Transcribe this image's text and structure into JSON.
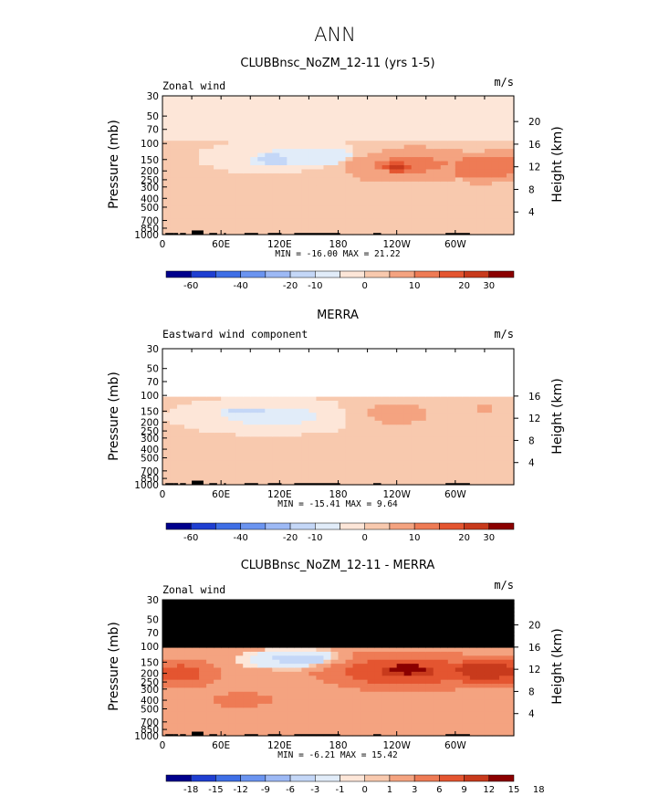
{
  "title": "ANN",
  "colors": {
    "cbar1": [
      "#00008c",
      "#1f3fd1",
      "#3f6fe6",
      "#6b94f0",
      "#9db9f5",
      "#c4d7f7",
      "#e1ecf9",
      "#fde6d8",
      "#f8c9ae",
      "#f4a380",
      "#ee7b55",
      "#e45530",
      "#c83a1c",
      "#8b0000"
    ],
    "cbar2": [
      "#00008c",
      "#1f3fd1",
      "#3f6fe6",
      "#6b94f0",
      "#9db9f5",
      "#c4d7f7",
      "#e1ecf9",
      "#fde6d8",
      "#f8c9ae",
      "#f4a380",
      "#ee7b55",
      "#e45530",
      "#c83a1c",
      "#8b0000"
    ]
  },
  "chart_data": [
    {
      "type": "heatmap",
      "title": "CLUBBnsc_NoZM_12-11 (yrs 1-5)",
      "left_label": "Zonal wind",
      "units": "m/s",
      "ylabel": "Pressure (mb)",
      "y2label": "Height (km)",
      "xticks": [
        "0",
        "60E",
        "120E",
        "180",
        "120W",
        "60W"
      ],
      "xtick_lon": [
        0,
        60,
        120,
        180,
        240,
        300
      ],
      "xlim": [
        0,
        360
      ],
      "yticks": [
        "30",
        "50",
        "70",
        "100",
        "150",
        "200",
        "250",
        "300",
        "400",
        "500",
        "700",
        "850",
        "1000"
      ],
      "ytick_p": [
        30,
        50,
        70,
        100,
        150,
        200,
        250,
        300,
        400,
        500,
        700,
        850,
        1000
      ],
      "ylim": [
        1000,
        30
      ],
      "y2ticks": [
        "20",
        "16",
        "12",
        "8",
        "4"
      ],
      "y2tick_km": [
        20,
        16,
        12,
        8,
        4
      ],
      "stats": "MIN = -16.00   MAX =  21.22",
      "colorbar_labels": [
        "-60",
        "-40",
        "-20",
        "-10",
        "0",
        "10",
        "20",
        "30"
      ],
      "colorbar_label_pos": [
        1,
        3,
        5,
        6,
        8,
        10,
        12,
        13
      ],
      "features": [
        {
          "kind": "band",
          "lon": [
            0,
            360
          ],
          "p": [
            30,
            90
          ],
          "value": -2
        },
        {
          "kind": "blob",
          "lon": 150,
          "p": 140,
          "rx": 80,
          "ry": 0.35,
          "value": -8
        },
        {
          "kind": "blob",
          "lon": 112,
          "p": 150,
          "rx": 20,
          "ry": 0.15,
          "value": -15
        },
        {
          "kind": "blob",
          "lon": 252,
          "p": 170,
          "rx": 85,
          "ry": 0.45,
          "value": 12
        },
        {
          "kind": "blob",
          "lon": 240,
          "p": 180,
          "rx": 20,
          "ry": 0.15,
          "value": 21
        },
        {
          "kind": "blob",
          "lon": 335,
          "p": 180,
          "rx": 55,
          "ry": 0.35,
          "value": 14
        }
      ]
    },
    {
      "type": "heatmap",
      "title": "MERRA",
      "left_label": "Eastward wind component",
      "units": "m/s",
      "ylabel": "Pressure (mb)",
      "y2label": "Height (km)",
      "xticks": [
        "0",
        "60E",
        "120E",
        "180",
        "120W",
        "60W"
      ],
      "xtick_lon": [
        0,
        60,
        120,
        180,
        240,
        300
      ],
      "xlim": [
        0,
        360
      ],
      "yticks": [
        "30",
        "50",
        "70",
        "100",
        "150",
        "200",
        "250",
        "300",
        "400",
        "500",
        "700",
        "850",
        "1000"
      ],
      "ytick_p": [
        30,
        50,
        70,
        100,
        150,
        200,
        250,
        300,
        400,
        500,
        700,
        850,
        1000
      ],
      "ylim": [
        1000,
        30
      ],
      "y2ticks": [
        "16",
        "12",
        "8",
        "4"
      ],
      "y2tick_km": [
        16,
        12,
        8,
        4
      ],
      "data_top_p": 100,
      "stats": "MIN = -15.41   MAX =   9.64",
      "colorbar_labels": [
        "-60",
        "-40",
        "-20",
        "-10",
        "0",
        "10",
        "20",
        "30"
      ],
      "colorbar_label_pos": [
        1,
        3,
        5,
        6,
        8,
        10,
        12,
        13
      ],
      "features": [
        {
          "kind": "blob",
          "lon": 110,
          "p": 170,
          "rx": 75,
          "ry": 0.35,
          "value": -8
        },
        {
          "kind": "blob",
          "lon": 85,
          "p": 150,
          "rx": 20,
          "ry": 0.08,
          "value": -15
        },
        {
          "kind": "blob",
          "lon": 240,
          "p": 160,
          "rx": 45,
          "ry": 0.35,
          "value": 8
        },
        {
          "kind": "blob",
          "lon": 328,
          "p": 140,
          "rx": 18,
          "ry": 0.2,
          "value": 6
        }
      ]
    },
    {
      "type": "heatmap",
      "title": "CLUBBnsc_NoZM_12-11 - MERRA",
      "left_label": "Zonal wind",
      "units": "m/s",
      "ylabel": "Pressure (mb)",
      "y2label": "Height (km)",
      "xticks": [
        "0",
        "60E",
        "120E",
        "180",
        "120W",
        "60W"
      ],
      "xtick_lon": [
        0,
        60,
        120,
        180,
        240,
        300
      ],
      "xlim": [
        0,
        360
      ],
      "yticks": [
        "30",
        "50",
        "70",
        "100",
        "150",
        "200",
        "250",
        "300",
        "400",
        "500",
        "700",
        "850",
        "1000"
      ],
      "ytick_p": [
        30,
        50,
        70,
        100,
        150,
        200,
        250,
        300,
        400,
        500,
        700,
        850,
        1000
      ],
      "ylim": [
        1000,
        30
      ],
      "y2ticks": [
        "20",
        "16",
        "12",
        "8",
        "4"
      ],
      "y2tick_km": [
        20,
        16,
        12,
        8,
        4
      ],
      "masked_above_p": 100,
      "stats": "MIN =  -6.21   MAX =  15.42",
      "colorbar_labels": [
        "-18",
        "-15",
        "-12",
        "-9",
        "-6",
        "-3",
        "-1",
        "0",
        "1",
        "3",
        "6",
        "9",
        "12",
        "15",
        "18"
      ],
      "colorbar_label_pos": [
        1,
        2,
        3,
        4,
        5,
        6,
        7,
        8,
        9,
        10,
        11,
        12,
        13,
        14,
        15
      ],
      "features": [
        {
          "kind": "blob",
          "lon": 20,
          "p": 200,
          "rx": 35,
          "ry": 0.35,
          "value": 8
        },
        {
          "kind": "blob",
          "lon": 140,
          "p": 140,
          "rx": 55,
          "ry": 0.25,
          "value": -4
        },
        {
          "kind": "blob",
          "lon": 250,
          "p": 190,
          "rx": 80,
          "ry": 0.45,
          "value": 10
        },
        {
          "kind": "blob",
          "lon": 250,
          "p": 180,
          "rx": 25,
          "ry": 0.18,
          "value": 15
        },
        {
          "kind": "blob",
          "lon": 335,
          "p": 190,
          "rx": 45,
          "ry": 0.35,
          "value": 11
        },
        {
          "kind": "blob",
          "lon": 80,
          "p": 400,
          "rx": 50,
          "ry": 0.3,
          "value": 4
        }
      ]
    }
  ]
}
